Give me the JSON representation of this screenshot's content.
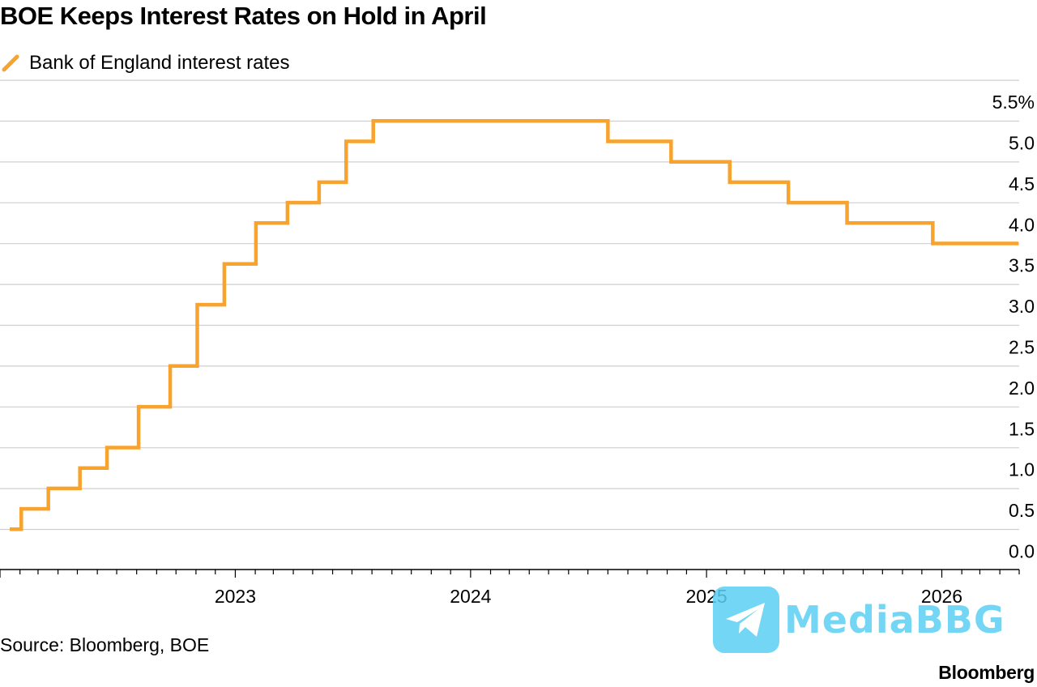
{
  "title": "BOE Keeps Interest Rates on Hold in April",
  "legend": {
    "label": "Bank of England interest rates",
    "color": "#f7a32e"
  },
  "source": "Source: Bloomberg, BOE",
  "brand": "Bloomberg",
  "watermark": {
    "text": "MediaBBG",
    "icon": "telegram-icon",
    "color": "#5cd0f4"
  },
  "chart_data": {
    "type": "line",
    "step": true,
    "title": "BOE Keeps Interest Rates on Hold in April",
    "xlabel": "",
    "ylabel": "",
    "x_range": [
      "2022-01",
      "2026-05"
    ],
    "ylim": [
      0,
      5.5
    ],
    "y_ticks": [
      "0.0",
      "0.5",
      "1.0",
      "1.5",
      "2.0",
      "2.5",
      "3.0",
      "3.5",
      "4.0",
      "4.5",
      "5.0",
      "5.5%"
    ],
    "x_ticks": [
      "2023",
      "2024",
      "2025",
      "2026"
    ],
    "grid": true,
    "series": [
      {
        "name": "Bank of England interest rates",
        "color": "#f7a32e",
        "points": [
          [
            "2022-01-01",
            0.25
          ],
          [
            "2022-02-03",
            0.5
          ],
          [
            "2022-03-17",
            0.75
          ],
          [
            "2022-05-05",
            1.0
          ],
          [
            "2022-06-16",
            1.25
          ],
          [
            "2022-08-04",
            1.75
          ],
          [
            "2022-09-22",
            2.25
          ],
          [
            "2022-11-03",
            3.0
          ],
          [
            "2022-12-15",
            3.5
          ],
          [
            "2023-02-02",
            4.0
          ],
          [
            "2023-03-23",
            4.25
          ],
          [
            "2023-05-11",
            4.5
          ],
          [
            "2023-06-22",
            5.0
          ],
          [
            "2023-08-03",
            5.25
          ],
          [
            "2024-08-01",
            5.0
          ],
          [
            "2024-11-07",
            4.75
          ],
          [
            "2025-02-06",
            4.5
          ],
          [
            "2025-05-08",
            4.25
          ],
          [
            "2025-08-07",
            4.0
          ],
          [
            "2025-12-18",
            3.75
          ],
          [
            "2026-04-30",
            3.75
          ]
        ]
      }
    ]
  }
}
